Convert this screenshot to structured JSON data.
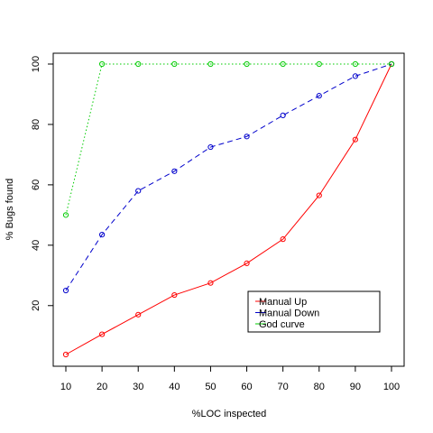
{
  "chart_data": {
    "type": "line",
    "title": "",
    "xlabel": "%LOC inspected",
    "ylabel": "% Bugs found",
    "x": [
      10,
      20,
      30,
      40,
      50,
      60,
      70,
      80,
      90,
      100
    ],
    "xlim": [
      10,
      100
    ],
    "ylim": [
      3.8,
      100
    ],
    "xticks": [
      "10",
      "20",
      "30",
      "40",
      "50",
      "60",
      "70",
      "80",
      "90",
      "100"
    ],
    "yticks": [
      "20",
      "40",
      "60",
      "80",
      "100"
    ],
    "grid": false,
    "legend_position": "bottom-right",
    "series": [
      {
        "name": "Manual Up",
        "color": "#ff0000",
        "line_style": "solid",
        "marker": "open-circle",
        "values": [
          3.8,
          10.5,
          17,
          23.5,
          27.5,
          34,
          42,
          56.5,
          75,
          100
        ]
      },
      {
        "name": "Manual Down",
        "color": "#0000cc",
        "line_style": "dashed",
        "marker": "open-circle",
        "values": [
          25,
          43.5,
          58,
          64.5,
          72.5,
          76,
          83,
          89.5,
          96,
          100
        ]
      },
      {
        "name": "God curve",
        "color": "#00cc00",
        "line_style": "dotted",
        "marker": "open-circle",
        "values": [
          50,
          100,
          100,
          100,
          100,
          100,
          100,
          100,
          100,
          100
        ]
      }
    ]
  }
}
